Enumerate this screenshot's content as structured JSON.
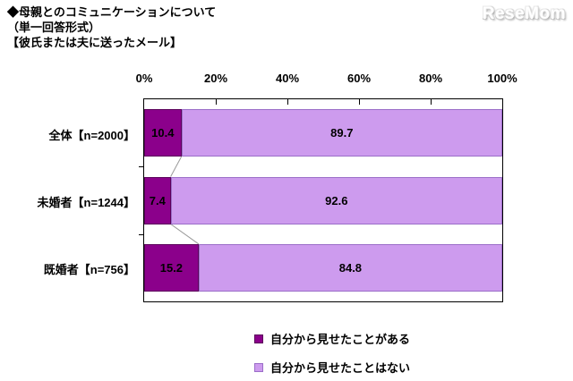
{
  "header": {
    "title_lines": [
      "◆母親とのコミュニケーションについて",
      "（単一回答形式）",
      "【彼氏または夫に送ったメール】"
    ],
    "logo": "ReseMom"
  },
  "chart_data": {
    "type": "bar",
    "orientation": "horizontal",
    "stacked": true,
    "title": "母親とのコミュニケーションについて（単一回答形式）【彼氏または夫に送ったメール】",
    "categories": [
      "全体【n=2000】",
      "未婚者【n=1244】",
      "既婚者【n=756】"
    ],
    "series": [
      {
        "name": "自分から見せたことがある",
        "values": [
          10.4,
          7.4,
          15.2
        ],
        "color": "#8B008B",
        "border_color": "#5A005A"
      },
      {
        "name": "自分から見せたことはない",
        "values": [
          89.7,
          92.6,
          84.8
        ],
        "color": "#CD9BEE",
        "border_color": "#9B6EC8"
      }
    ],
    "x_ticks": [
      "0%",
      "20%",
      "40%",
      "60%",
      "80%",
      "100%"
    ],
    "xlim": [
      0,
      100
    ],
    "grid": false,
    "legend_position": "bottom",
    "connector_line_color": "#999999",
    "label_color": "#000000"
  }
}
